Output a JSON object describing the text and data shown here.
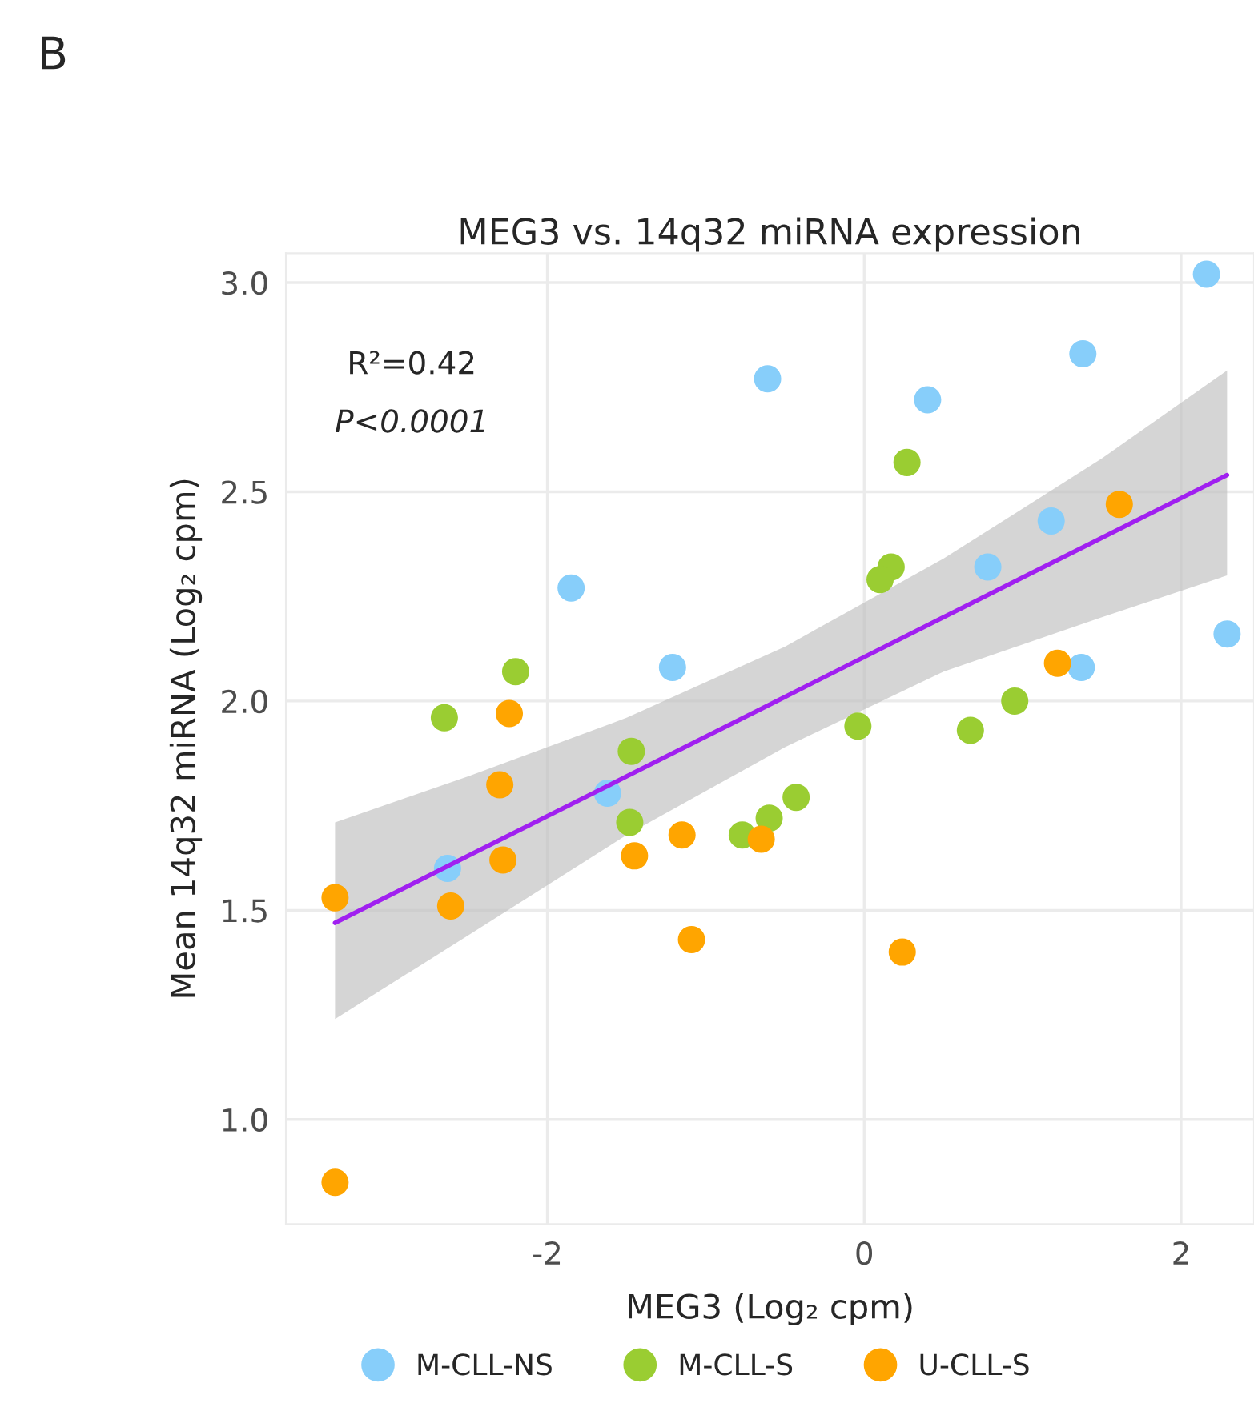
{
  "chart_data": {
    "type": "scatter",
    "title": "MEG3 vs. 14q32 miRNA expression",
    "xlabel": "MEG3 (Log₂ cpm)",
    "ylabel": "Mean 14q32 miRNA (Log₂ cpm)",
    "annotations": [
      "B",
      "R²=0.42",
      "P<0.0001"
    ],
    "xlim": [
      -3.65,
      2.46
    ],
    "ylim": [
      0.75,
      3.07
    ],
    "xticks": [
      -2,
      0,
      2
    ],
    "yticks": [
      {
        "value": 1,
        "label": "1.0"
      },
      {
        "value": 1.5,
        "label": "1.5"
      },
      {
        "value": 2,
        "label": "2.0"
      },
      {
        "value": 2.5,
        "label": "2.5"
      },
      {
        "value": 3,
        "label": "3.0"
      }
    ],
    "grid": true,
    "legend": "bottom",
    "series": [
      {
        "name": "M-CLL-NS",
        "marker": "circle",
        "color": "#87cefa",
        "x": [
          2.16,
          1.38,
          0.4,
          -0.61,
          -1.85,
          -1.21,
          1.18,
          0.78,
          1.37,
          2.29,
          -1.62,
          -2.63
        ],
        "values": [
          3.02,
          2.83,
          2.72,
          2.77,
          2.27,
          2.08,
          2.43,
          2.32,
          2.08,
          2.16,
          1.78,
          1.6
        ]
      },
      {
        "name": "M-CLL-S",
        "marker": "circle",
        "color": "#9acd32",
        "x": [
          0.27,
          0.17,
          0.1,
          -2.2,
          -2.65,
          -1.47,
          -1.48,
          -0.04,
          0.95,
          0.67,
          -0.43,
          -0.6,
          -0.77
        ],
        "values": [
          2.57,
          2.32,
          2.29,
          2.07,
          1.96,
          1.88,
          1.71,
          1.94,
          2.0,
          1.93,
          1.77,
          1.72,
          1.68
        ]
      },
      {
        "name": "U-CLL-S",
        "marker": "circle",
        "color": "#ffa500",
        "x": [
          1.61,
          1.22,
          -2.24,
          -2.3,
          -2.28,
          -2.61,
          -3.34,
          -3.34,
          -1.45,
          -1.15,
          -0.65,
          -1.09,
          0.24
        ],
        "values": [
          2.47,
          2.09,
          1.97,
          1.8,
          1.62,
          1.51,
          1.53,
          0.85,
          1.63,
          1.68,
          1.67,
          1.43,
          1.4
        ]
      },
      {
        "type": "line",
        "color": "#a020f0",
        "x": [
          -3.34,
          -2.5,
          -1.5,
          -0.5,
          0.5,
          1.5,
          2.29
        ],
        "values": [
          1.47,
          1.63,
          1.82,
          2.01,
          2.2,
          2.39,
          2.54
        ],
        "lower": [
          1.24,
          1.44,
          1.68,
          1.89,
          2.07,
          2.2,
          2.3
        ],
        "upper": [
          1.71,
          1.82,
          1.96,
          2.13,
          2.34,
          2.58,
          2.79
        ]
      }
    ]
  }
}
